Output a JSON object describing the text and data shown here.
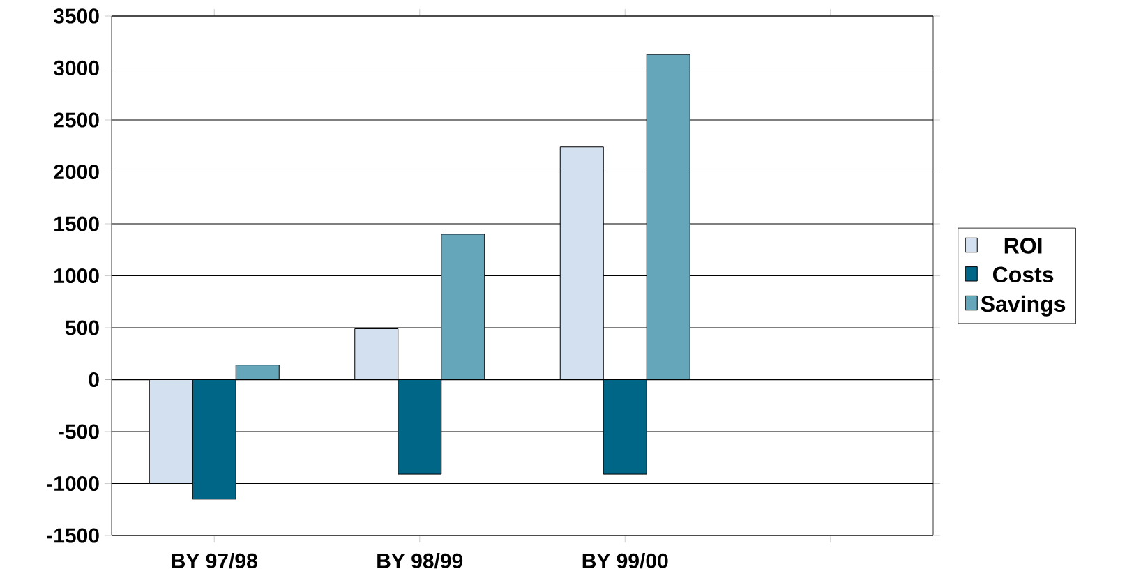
{
  "chart_data": {
    "type": "bar",
    "categories": [
      "BY 97/98",
      "BY 98/99",
      "BY 99/00",
      null
    ],
    "series": [
      {
        "name": "ROI",
        "color": "#d3e0ef",
        "values": [
          -1000,
          490,
          2240,
          null
        ]
      },
      {
        "name": "Costs",
        "color": "#006688",
        "values": [
          -1150,
          -910,
          -910,
          null
        ]
      },
      {
        "name": "Savings",
        "color": "#66a6bb",
        "values": [
          140,
          1400,
          3130,
          null
        ]
      }
    ],
    "ylim": [
      -1500,
      3500
    ],
    "yticks": [
      -1500,
      -1000,
      -500,
      0,
      500,
      1000,
      1500,
      2000,
      2500,
      3000,
      3500
    ],
    "grid": "y",
    "legend": "right"
  }
}
